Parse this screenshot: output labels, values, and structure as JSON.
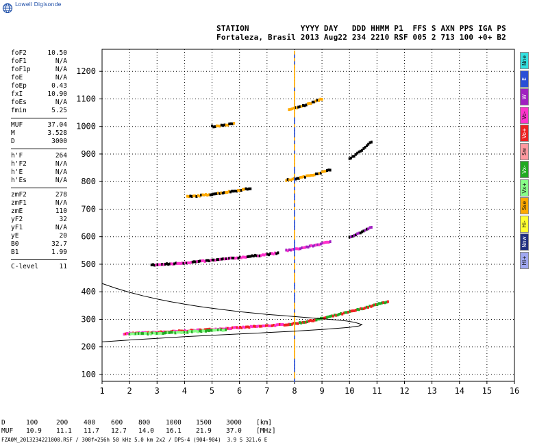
{
  "logo": {
    "text": "Lowell Digisonde",
    "icon": "globe-icon"
  },
  "header": {
    "line1": "STATION           YYYY DAY   DDD HHMM P1  FFS S AXN PPS IGA PS",
    "line2": "Fortaleza, Brasil 2013 Aug22 234 2210 RSF 005 2 713 100 +0+ B2"
  },
  "params": [
    {
      "name": "foF2",
      "value": "10.50"
    },
    {
      "name": "foF1",
      "value": "N/A"
    },
    {
      "name": "foF1p",
      "value": "N/A"
    },
    {
      "name": "foE",
      "value": "N/A"
    },
    {
      "name": "foEp",
      "value": "0.43"
    },
    {
      "name": "fxI",
      "value": "10.90"
    },
    {
      "name": "foEs",
      "value": "N/A"
    },
    {
      "name": "fmin",
      "value": "5.25"
    },
    {
      "sep": true
    },
    {
      "name": "MUF",
      "value": "37.04"
    },
    {
      "name": "M",
      "value": "3.528"
    },
    {
      "name": "D",
      "value": "3000"
    },
    {
      "sep": true
    },
    {
      "name": "h'F",
      "value": "264"
    },
    {
      "name": "h'F2",
      "value": "N/A"
    },
    {
      "name": "h'E",
      "value": "N/A"
    },
    {
      "name": "h'Es",
      "value": "N/A"
    },
    {
      "sep": true
    },
    {
      "name": "zmF2",
      "value": "278"
    },
    {
      "name": "zmF1",
      "value": "N/A"
    },
    {
      "name": "zmE",
      "value": "110"
    },
    {
      "name": "yF2",
      "value": "32"
    },
    {
      "name": "yF1",
      "value": "N/A"
    },
    {
      "name": "yE",
      "value": "20"
    },
    {
      "name": "B0",
      "value": "32.7"
    },
    {
      "name": "B1",
      "value": "1.99"
    },
    {
      "sep": true
    },
    {
      "name": "C-level",
      "value": "11"
    }
  ],
  "legend": [
    {
      "label": "Nne",
      "color": "#33e0e0"
    },
    {
      "label": "E",
      "color": "#2a4fd6"
    },
    {
      "label": "W",
      "color": "#a020c0"
    },
    {
      "label": "Vo-",
      "color": "#ff33cc"
    },
    {
      "label": "Vo+",
      "color": "#ee2222"
    },
    {
      "label": "Sw",
      "color": "#ff9aa0"
    },
    {
      "label": "Vx-",
      "color": "#22aa22"
    },
    {
      "label": "Vx+",
      "color": "#88ff88"
    },
    {
      "label": "Sse",
      "color": "#ffaa00"
    },
    {
      "label": "Hi-",
      "color": "#ffff30"
    },
    {
      "label": "Nnw",
      "color": "#203080"
    },
    {
      "label": "Hi+",
      "color": "#a0a8f0"
    }
  ],
  "muf_table": {
    "row1": [
      "D",
      "100",
      "200",
      "400",
      "600",
      "800",
      "1000",
      "1500",
      "3000",
      "[km]"
    ],
    "row2": [
      "MUF",
      "10.9",
      "11.1",
      "11.7",
      "12.7",
      "14.0",
      "16.1",
      "21.9",
      "37.0",
      "[MHz]"
    ]
  },
  "footer": "FZA0M_2013234221000.RSF / 300f×256h 50 kHz 5.0 km 2x2 / DPS-4 (904-904)  3.9 S 321.6 E",
  "chart_data": {
    "type": "scatter",
    "title": "",
    "xlabel": "",
    "ylabel": "",
    "xlim": [
      1,
      16
    ],
    "ylim": [
      75,
      1280
    ],
    "xticks": [
      1,
      2,
      3,
      4,
      5,
      6,
      7,
      8,
      9,
      10,
      11,
      12,
      13,
      14,
      15,
      16
    ],
    "yticks": [
      100,
      200,
      300,
      400,
      500,
      600,
      700,
      800,
      900,
      1000,
      1100,
      1200
    ],
    "grid": true,
    "echo_traces": [
      {
        "name": "F-trace O",
        "start": [
          1.8,
          248
        ],
        "end": [
          7.8,
          282
        ],
        "colors": [
          "#ee2222",
          "#ff33cc"
        ]
      },
      {
        "name": "F-trace O cusp",
        "start": [
          7.8,
          282
        ],
        "end": [
          11.4,
          365
        ],
        "colors": [
          "#ee2222",
          "#22aa22"
        ]
      },
      {
        "name": "F-trace X",
        "start": [
          2.0,
          246
        ],
        "end": [
          5.5,
          262
        ],
        "colors": [
          "#88ff88",
          "#22aa22"
        ]
      },
      {
        "name": "2F low",
        "start": [
          2.8,
          497
        ],
        "end": [
          7.4,
          540
        ],
        "colors": [
          "#ff33cc",
          "#000000"
        ]
      },
      {
        "name": "2F cusp",
        "start": [
          7.7,
          550
        ],
        "end": [
          9.3,
          582
        ],
        "colors": [
          "#a020c0",
          "#ff33cc"
        ]
      },
      {
        "name": "2F high",
        "start": [
          10.0,
          600
        ],
        "end": [
          10.8,
          635
        ],
        "colors": [
          "#000000",
          "#a020c0"
        ]
      },
      {
        "name": "3F low",
        "start": [
          4.1,
          745
        ],
        "end": [
          6.4,
          775
        ],
        "colors": [
          "#000000",
          "#ffaa00"
        ]
      },
      {
        "name": "3F cusp",
        "start": [
          7.7,
          805
        ],
        "end": [
          9.3,
          842
        ],
        "colors": [
          "#000000",
          "#ffaa00"
        ]
      },
      {
        "name": "3F high",
        "start": [
          10.0,
          885
        ],
        "end": [
          10.8,
          945
        ],
        "colors": [
          "#000000"
        ]
      },
      {
        "name": "4F low",
        "start": [
          5.0,
          1000
        ],
        "end": [
          5.8,
          1010
        ],
        "colors": [
          "#000000",
          "#ffaa00"
        ]
      },
      {
        "name": "4F cusp",
        "start": [
          7.8,
          1062
        ],
        "end": [
          9.0,
          1100
        ],
        "colors": [
          "#000000",
          "#ffaa00"
        ]
      }
    ],
    "vertical_streak": {
      "x": 8.0,
      "y": [
        80,
        1270
      ],
      "colors": [
        "#2a4fd6",
        "#ffaa00"
      ]
    },
    "model_profile": [
      [
        1.0,
        430
      ],
      [
        1.5,
        413
      ],
      [
        2.0,
        398
      ],
      [
        2.5,
        385
      ],
      [
        3.0,
        374
      ],
      [
        3.5,
        364
      ],
      [
        4.0,
        355
      ],
      [
        4.5,
        347
      ],
      [
        5.0,
        340
      ],
      [
        5.5,
        334
      ],
      [
        6.0,
        328
      ],
      [
        6.5,
        323
      ],
      [
        7.0,
        318
      ],
      [
        7.5,
        314
      ],
      [
        8.0,
        310
      ],
      [
        8.5,
        306
      ],
      [
        9.0,
        302
      ],
      [
        9.5,
        298
      ],
      [
        9.9,
        294
      ],
      [
        10.2,
        289
      ],
      [
        10.45,
        281
      ],
      [
        10.35,
        276
      ],
      [
        10.0,
        271
      ],
      [
        9.5,
        267
      ],
      [
        9.0,
        263
      ],
      [
        8.0,
        257
      ],
      [
        7.0,
        252
      ],
      [
        6.0,
        247
      ],
      [
        5.0,
        242
      ],
      [
        4.0,
        237
      ],
      [
        3.0,
        231
      ],
      [
        2.0,
        225
      ],
      [
        1.0,
        218
      ]
    ]
  }
}
